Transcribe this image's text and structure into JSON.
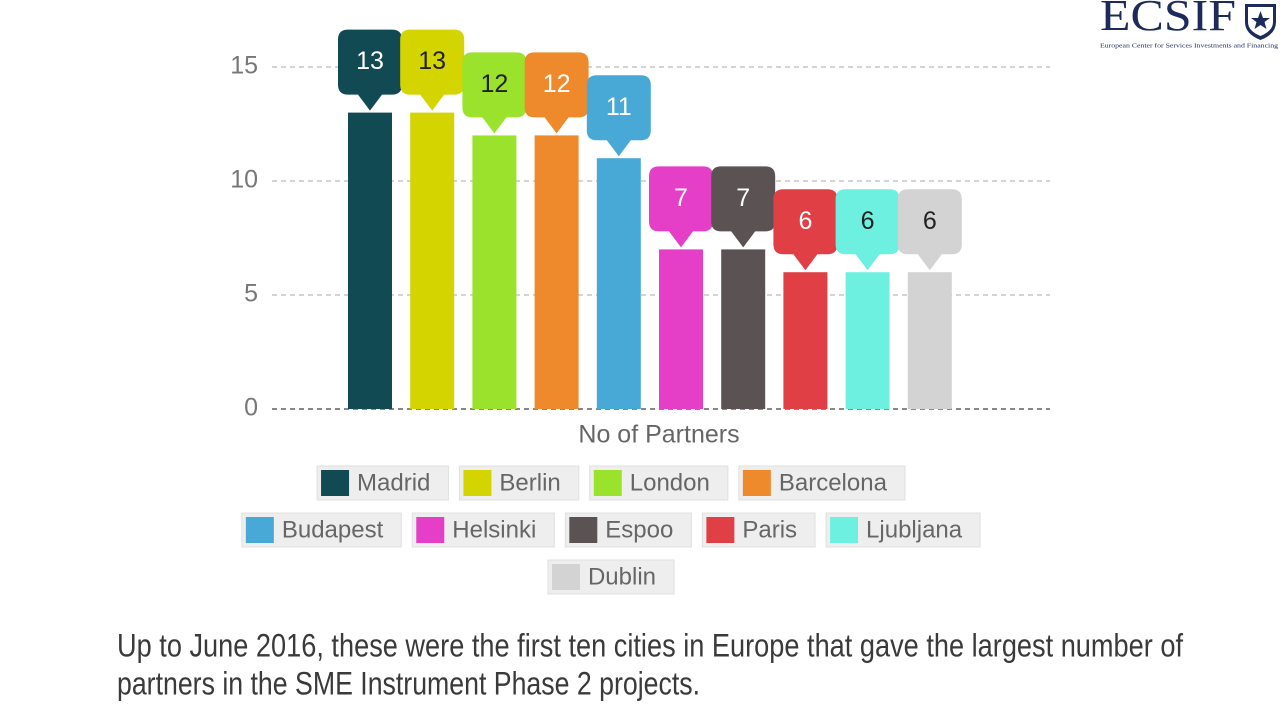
{
  "logo": {
    "title": "ECSIF",
    "subtitle": "European Center for Services Investments and Financing"
  },
  "chart_data": {
    "type": "bar",
    "x_label": "No of Partners",
    "series": [
      {
        "name": "Madrid",
        "color": "#124a54",
        "values": [
          13
        ]
      },
      {
        "name": "Berlin",
        "color": "#d4d400",
        "values": [
          13
        ]
      },
      {
        "name": "London",
        "color": "#9be22d",
        "values": [
          12
        ]
      },
      {
        "name": "Barcelona",
        "color": "#ef8a2c",
        "values": [
          12
        ]
      },
      {
        "name": "Budapest",
        "color": "#48a9d6",
        "values": [
          11
        ]
      },
      {
        "name": "Helsinki",
        "color": "#e63fc7",
        "values": [
          7
        ]
      },
      {
        "name": "Espoo",
        "color": "#5a5253",
        "values": [
          7
        ]
      },
      {
        "name": "Paris",
        "color": "#e04045",
        "values": [
          6
        ]
      },
      {
        "name": "Ljubljana",
        "color": "#6ef0e0",
        "values": [
          6
        ]
      },
      {
        "name": "Dublin",
        "color": "#d3d3d3",
        "values": [
          6
        ]
      }
    ],
    "ylim": [
      0,
      15
    ],
    "yticks": [
      0,
      5,
      10,
      15
    ],
    "grid": true,
    "legend": "bottom"
  },
  "caption": [
    "Up to June 2016, these were the first ten cities in Europe that gave the largest number of",
    "partners in the SME Instrument Phase 2 projects."
  ]
}
